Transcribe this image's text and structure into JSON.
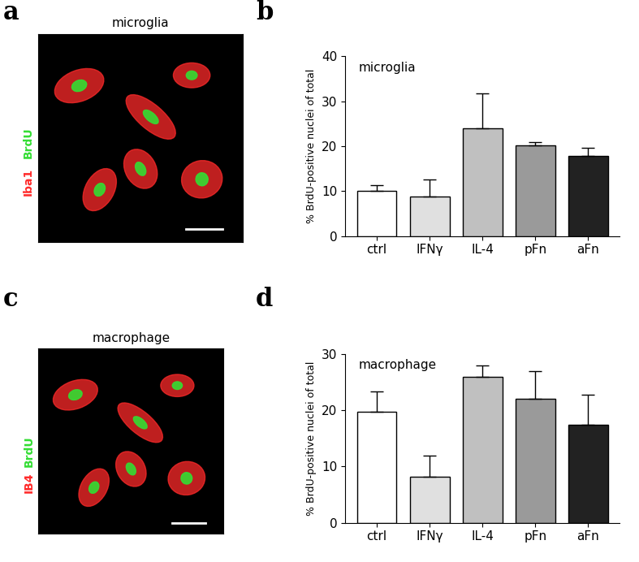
{
  "images": [
    {
      "panel": "a",
      "title": "microglia",
      "stains": [
        {
          "text": "Iba1",
          "color": "#ff2a2a"
        },
        {
          "text": "BrdU",
          "color": "#33dd33"
        }
      ]
    },
    {
      "panel": "c",
      "title": "macrophage",
      "stains": [
        {
          "text": "IB4",
          "color": "#ff2a2a"
        },
        {
          "text": "BrdU",
          "color": "#33dd33"
        }
      ]
    }
  ],
  "chart_data": [
    {
      "type": "bar",
      "panel": "b",
      "annotation": "microglia",
      "categories": [
        "ctrl",
        "IFNγ",
        "IL-4",
        "pFn",
        "aFn"
      ],
      "values": [
        10.0,
        8.8,
        24.0,
        20.2,
        17.9
      ],
      "errors": [
        1.3,
        3.7,
        7.7,
        0.7,
        1.8
      ],
      "colors": [
        "#ffffff",
        "#e0e0e0",
        "#c0c0c0",
        "#9a9a9a",
        "#222222"
      ],
      "y_label": "% BrdU-positive nuclei of total",
      "ylim": [
        0,
        40
      ],
      "yticks": [
        0,
        10,
        20,
        30,
        40
      ]
    },
    {
      "type": "bar",
      "panel": "d",
      "annotation": "macrophage",
      "categories": [
        "ctrl",
        "IFNγ",
        "IL-4",
        "pFn",
        "aFn"
      ],
      "values": [
        19.8,
        8.2,
        26.0,
        22.0,
        17.4
      ],
      "errors": [
        3.5,
        3.8,
        1.9,
        5.0,
        5.3
      ],
      "colors": [
        "#ffffff",
        "#e0e0e0",
        "#c0c0c0",
        "#9a9a9a",
        "#222222"
      ],
      "y_label": "% BrdU-positive nuclei of total",
      "ylim": [
        0,
        30
      ],
      "yticks": [
        0,
        10,
        20,
        30
      ]
    }
  ]
}
